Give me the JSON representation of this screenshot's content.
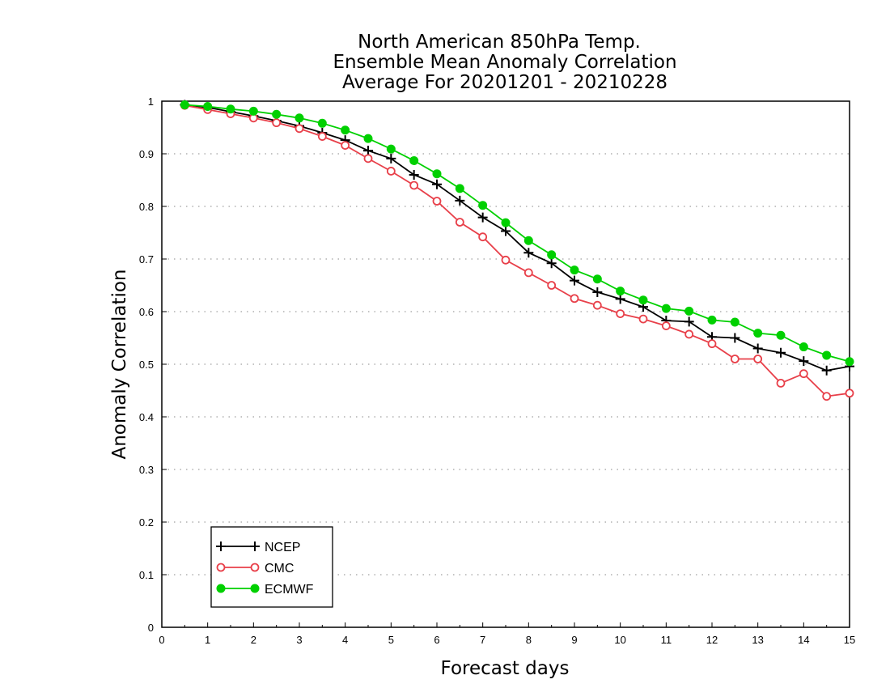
{
  "chart_data": {
    "type": "line",
    "title_lines": [
      "North American 850hPa Temp.",
      "Ensemble Mean Anomaly Correlation",
      "Average For 20201201 - 20210228"
    ],
    "xlabel": "Forecast days",
    "ylabel": "Anomaly Correlation",
    "xlim": [
      0,
      15
    ],
    "ylim": [
      0,
      1
    ],
    "x_ticks": [
      "0",
      "1",
      "2",
      "3",
      "4",
      "5",
      "6",
      "7",
      "8",
      "9",
      "10",
      "11",
      "12",
      "13",
      "14",
      "15"
    ],
    "y_ticks": [
      "0",
      "0.1",
      "0.2",
      "0.3",
      "0.4",
      "0.5",
      "0.6",
      "0.7",
      "0.8",
      "0.9",
      "1"
    ],
    "grid": "horizontal dotted",
    "legend_position": "bottom-left",
    "x": [
      0.5,
      1,
      1.5,
      2,
      2.5,
      3,
      3.5,
      4,
      4.5,
      5,
      5.5,
      6,
      6.5,
      7,
      7.5,
      8,
      8.5,
      9,
      9.5,
      10,
      10.5,
      11,
      11.5,
      12,
      12.5,
      13,
      13.5,
      14,
      14.5,
      15
    ],
    "series": [
      {
        "name": "NCEP",
        "color": "#000000",
        "marker": "plus",
        "values": [
          0.993,
          0.988,
          0.98,
          0.972,
          0.963,
          0.953,
          0.94,
          0.926,
          0.906,
          0.891,
          0.86,
          0.842,
          0.811,
          0.779,
          0.753,
          0.712,
          0.692,
          0.659,
          0.637,
          0.624,
          0.609,
          0.583,
          0.581,
          0.552,
          0.55,
          0.53,
          0.522,
          0.506,
          0.488,
          0.496
        ]
      },
      {
        "name": "CMC",
        "color": "#e8404a",
        "marker": "open-circle",
        "values": [
          0.992,
          0.984,
          0.976,
          0.968,
          0.959,
          0.948,
          0.933,
          0.916,
          0.891,
          0.867,
          0.84,
          0.81,
          0.77,
          0.742,
          0.698,
          0.674,
          0.65,
          0.625,
          0.612,
          0.596,
          0.586,
          0.573,
          0.557,
          0.539,
          0.51,
          0.51,
          0.464,
          0.482,
          0.439,
          0.445
        ]
      },
      {
        "name": "ECMWF",
        "color": "#00d000",
        "marker": "filled-circle",
        "values": [
          0.993,
          0.99,
          0.985,
          0.981,
          0.975,
          0.968,
          0.958,
          0.945,
          0.929,
          0.909,
          0.887,
          0.862,
          0.834,
          0.802,
          0.769,
          0.735,
          0.708,
          0.679,
          0.662,
          0.639,
          0.622,
          0.606,
          0.601,
          0.584,
          0.58,
          0.559,
          0.555,
          0.533,
          0.517,
          0.505
        ]
      }
    ]
  }
}
